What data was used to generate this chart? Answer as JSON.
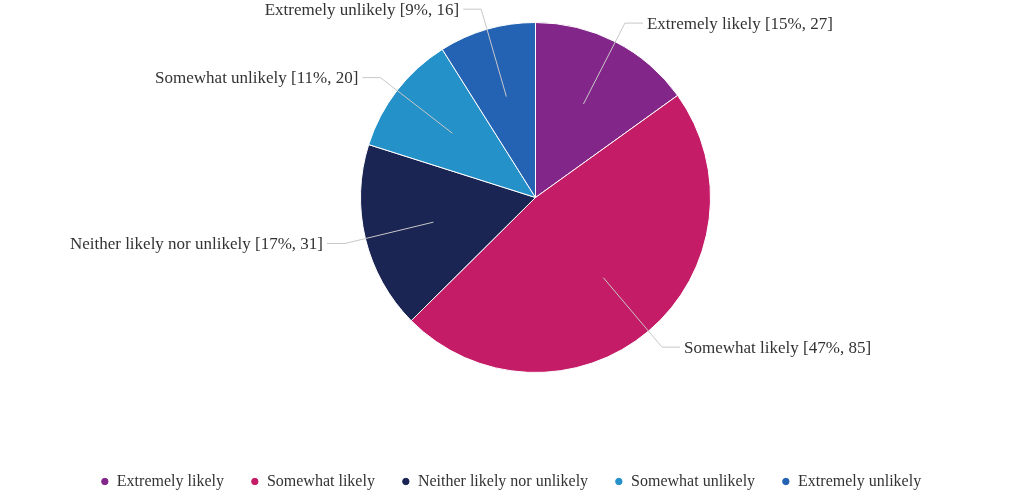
{
  "chart_data": {
    "type": "pie",
    "categories": [
      "Extremely likely",
      "Somewhat likely",
      "Neither likely nor unlikely",
      "Somewhat unlikely",
      "Extremely unlikely"
    ],
    "values": [
      27,
      85,
      31,
      20,
      16
    ],
    "value_labels": [
      "[15%, 27]",
      "[47%, 85]",
      "[17%, 31]",
      "[11%, 20]",
      "[9%, 16]"
    ],
    "colors": [
      "#83268a",
      "#c41c66",
      "#1b2553",
      "#2491c9",
      "#2462b4"
    ],
    "legend": "bottom"
  }
}
